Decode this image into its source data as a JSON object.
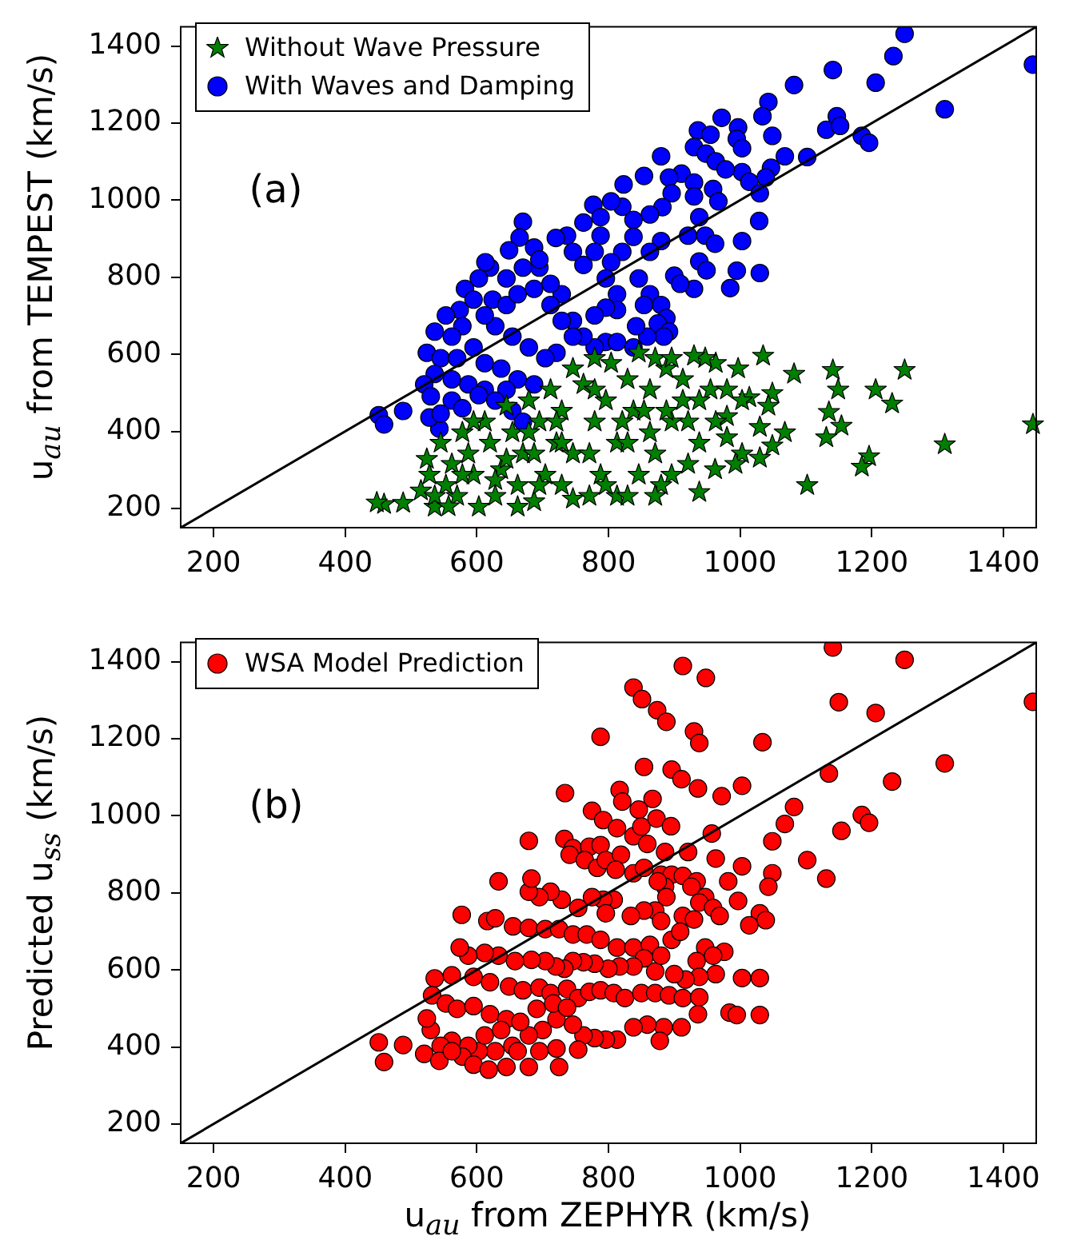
{
  "chart_data": [
    {
      "type": "scatter",
      "ylabel": "u$_{au}$ from TEMPEST (km/s)",
      "annotations": [
        "(a)"
      ],
      "xlim": [
        150,
        1450
      ],
      "ylim": [
        150,
        1450
      ],
      "xticks": [
        200,
        400,
        600,
        800,
        1000,
        1200,
        1400
      ],
      "yticks": [
        200,
        400,
        600,
        800,
        1000,
        1200,
        1400
      ],
      "grid": false,
      "legend": "top left",
      "series": [
        {
          "name": "Without Wave Pressure",
          "color": "#007f00",
          "marker": "star",
          "x": [
            1445,
            1311,
            1250,
            1231,
            1206,
            1196,
            1185,
            1154,
            1135,
            1131,
            1141,
            1149,
            1102,
            1082,
            1068,
            1049,
            1043,
            1049,
            1035,
            1030,
            1030,
            1014,
            1003,
            1003,
            997,
            993,
            980,
            980,
            963,
            962,
            955,
            947,
            938,
            930,
            938,
            921,
            913,
            896,
            888,
            880,
            871,
            863,
            863,
            846,
            846,
            838,
            829,
            813,
            813,
            804,
            796,
            788,
            779,
            779,
            771,
            762,
            746,
            746,
            729,
            729,
            721,
            712,
            704,
            695,
            687,
            679,
            670,
            662,
            654,
            645,
            637,
            628,
            620,
            612,
            603,
            595,
            587,
            578,
            570,
            562,
            553,
            545,
            536,
            528,
            524,
            515,
            536,
            557,
            488,
            459,
            448,
            662,
            746,
            628,
            687,
            729,
            771,
            829,
            871,
            896,
            913,
            938,
            963,
            980,
            829,
            871,
            796,
            695,
            645,
            595,
            578,
            721,
            679,
            779,
            821,
            854,
            888,
            896,
            921
          ],
          "values": [
            418,
            366,
            559,
            472,
            508,
            335,
            308,
            414,
            450,
            384,
            559,
            508,
            260,
            549,
            397,
            499,
            466,
            363,
            596,
            411,
            331,
            488,
            480,
            342,
            563,
            315,
            439,
            384,
            577,
            301,
            508,
            590,
            242,
            596,
            370,
            425,
            480,
            287,
            563,
            260,
            590,
            508,
            397,
            604,
            287,
            453,
            535,
            232,
            370,
            577,
            480,
            287,
            590,
            425,
            232,
            522,
            342,
            563,
            453,
            260,
            370,
            508,
            287,
            425,
            218,
            480,
            342,
            260,
            397,
            466,
            301,
            232,
            370,
            425,
            204,
            287,
            342,
            397,
            232,
            315,
            260,
            370,
            204,
            287,
            328,
            246,
            232,
            205,
            214,
            211,
            215,
            204,
            225,
            273,
            342,
            370,
            342,
            370,
            342,
            425,
            535,
            480,
            425,
            508,
            232,
            232,
            260,
            260,
            328,
            425,
            287,
            425,
            397,
            508,
            425,
            453,
            453,
            590,
            315
          ]
        },
        {
          "name": "With Waves and Damping",
          "color": "#0000ff",
          "marker": "circle",
          "x": [
            1250,
            1233,
            1141,
            1082,
            1206,
            1311,
            1445,
            1043,
            1034,
            1147,
            1131,
            1152,
            1185,
            1196,
            972,
            936,
            955,
            997,
            995,
            1003,
            1049,
            1068,
            1102,
            1047,
            1039,
            1003,
            1014,
            1030,
            1029,
            1003,
            995,
            1030,
            985,
            880,
            930,
            948,
            963,
            978,
            911,
            892,
            854,
            823,
            930,
            959,
            967,
            930,
            896,
            882,
            863,
            838,
            821,
            804,
            777,
            788,
            938,
            921,
            947,
            962,
            938,
            949,
            900,
            930,
            909,
            880,
            863,
            838,
            821,
            804,
            788,
            762,
            737,
            720,
            746,
            762,
            779,
            796,
            813,
            846,
            863,
            880,
            854,
            888,
            875,
            892,
            884,
            859,
            842,
            838,
            813,
            796,
            779,
            796,
            813,
            779,
            762,
            746,
            729,
            712,
            695,
            670,
            665,
            649,
            687,
            695,
            670,
            645,
            620,
            613,
            603,
            582,
            595,
            624,
            645,
            662,
            687,
            712,
            729,
            746,
            721,
            704,
            679,
            654,
            628,
            612,
            574,
            553,
            578,
            562,
            536,
            524,
            545,
            570,
            595,
            612,
            637,
            662,
            687,
            645,
            612,
            587,
            562,
            536,
            520,
            530,
            562,
            578,
            603,
            628,
            654,
            670,
            543,
            528,
            545,
            451,
            459,
            488
          ],
          "values": [
            1432,
            1374,
            1338,
            1299,
            1305,
            1236,
            1352,
            1255,
            1218,
            1218,
            1183,
            1193,
            1167,
            1149,
            1214,
            1181,
            1170,
            1189,
            1159,
            1135,
            1167,
            1114,
            1112,
            1084,
            1059,
            1073,
            1048,
            1018,
            946,
            894,
            817,
            811,
            772,
            1114,
            1138,
            1121,
            1101,
            1080,
            1069,
            1059,
            1063,
            1041,
            1046,
            1029,
            997,
            1010,
            1018,
            982,
            963,
            949,
            983,
            997,
            988,
            956,
            956,
            908,
            908,
            887,
            841,
            818,
            804,
            770,
            783,
            894,
            866,
            905,
            866,
            839,
            908,
            942,
            908,
            902,
            866,
            832,
            866,
            797,
            756,
            797,
            756,
            728,
            728,
            694,
            680,
            659,
            646,
            646,
            673,
            618,
            715,
            721,
            701,
            632,
            632,
            618,
            646,
            687,
            756,
            783,
            825,
            944,
            903,
            870,
            877,
            846,
            825,
            797,
            825,
            839,
            797,
            770,
            742,
            742,
            728,
            756,
            770,
            728,
            687,
            646,
            604,
            590,
            618,
            646,
            673,
            701,
            715,
            701,
            673,
            646,
            659,
            604,
            590,
            590,
            618,
            577,
            563,
            535,
            522,
            508,
            508,
            522,
            535,
            549,
            522,
            491,
            480,
            460,
            494,
            480,
            453,
            425,
            407,
            436,
            446,
            442,
            418,
            453
          ]
        },
        {
          "type": "line",
          "color": "#000000",
          "marker": "none",
          "x": [
            150,
            1450
          ],
          "values": [
            150,
            1450
          ]
        }
      ]
    },
    {
      "type": "scatter",
      "xlabel": "u$_{au}$ from ZEPHYR (km/s)",
      "ylabel": "Predicted u$_{ss}$ (km/s)",
      "annotations": [
        "(b)"
      ],
      "xlim": [
        150,
        1450
      ],
      "ylim": [
        150,
        1450
      ],
      "xticks": [
        200,
        400,
        600,
        800,
        1000,
        1200,
        1400
      ],
      "yticks": [
        200,
        400,
        600,
        800,
        1000,
        1200,
        1400
      ],
      "grid": false,
      "legend": "top left",
      "series": [
        {
          "name": "WSA Model Prediction",
          "color": "#ff0000",
          "marker": "circle",
          "x": [
            1141,
            1250,
            1445,
            1150,
            1206,
            913,
            948,
            838,
            851,
            874,
            888,
            930,
            938,
            788,
            1034,
            1311,
            1135,
            1231,
            854,
            896,
            911,
            936,
            972,
            1003,
            734,
            817,
            821,
            867,
            846,
            775,
            792,
            813,
            838,
            850,
            873,
            895,
            1082,
            1068,
            1185,
            1196,
            1154,
            957,
            1049,
            679,
            733,
            746,
            771,
            788,
            741,
            764,
            783,
            796,
            819,
            859,
            886,
            921,
            963,
            1003,
            1102,
            1131,
            1049,
            1043,
            982,
            811,
            838,
            854,
            880,
            896,
            913,
            934,
            926,
            947,
            938,
            959,
            969,
            997,
            1030,
            1039,
            1014,
            886,
            875,
            888,
            871,
            854,
            834,
            880,
            913,
            930,
            808,
            792,
            796,
            775,
            754,
            729,
            712,
            695,
            679,
            633,
            683,
            577,
            616,
            628,
            655,
            679,
            704,
            725,
            746,
            767,
            788,
            813,
            838,
            863,
            896,
            909,
            947,
            976,
            934,
            959,
            1003,
            1030,
            963,
            938,
            917,
            900,
            871,
            880,
            854,
            838,
            817,
            800,
            779,
            762,
            746,
            733,
            720,
            704,
            683,
            658,
            633,
            612,
            587,
            574,
            562,
            536,
            595,
            620,
            649,
            670,
            695,
            712,
            737,
            754,
            771,
            788,
            808,
            825,
            850,
            871,
            892,
            913,
            938,
            984,
            995,
            1030,
            936,
            911,
            884,
            878,
            859,
            838,
            813,
            796,
            779,
            762,
            754,
            746,
            721,
            700,
            679,
            654,
            628,
            603,
            587,
            562,
            545,
            530,
            524,
            532,
            553,
            570,
            595,
            620,
            645,
            666,
            691,
            716,
            737,
            612,
            637,
            578,
            595,
            618,
            645,
            679,
            725,
            520,
            543,
            562,
            451,
            459,
            488,
            662,
            695,
            721
          ],
          "values": [
            1437,
            1405,
            1296,
            1295,
            1267,
            1389,
            1358,
            1333,
            1303,
            1274,
            1244,
            1219,
            1189,
            1205,
            1191,
            1136,
            1110,
            1089,
            1127,
            1120,
            1095,
            1071,
            1051,
            1078,
            1059,
            1067,
            1037,
            1044,
            1016,
            1013,
            989,
            968,
            947,
            972,
            993,
            973,
            1023,
            979,
            1002,
            982,
            961,
            954,
            934,
            935,
            940,
            916,
            920,
            924,
            899,
            885,
            865,
            885,
            899,
            927,
            906,
            906,
            889,
            869,
            885,
            837,
            851,
            816,
            830,
            860,
            851,
            865,
            847,
            847,
            844,
            830,
            816,
            789,
            775,
            761,
            740,
            779,
            747,
            729,
            716,
            816,
            830,
            789,
            754,
            754,
            740,
            727,
            740,
            731,
            782,
            782,
            747,
            789,
            761,
            782,
            803,
            789,
            803,
            830,
            837,
            743,
            727,
            734,
            713,
            709,
            706,
            706,
            692,
            692,
            678,
            658,
            658,
            665,
            678,
            699,
            658,
            647,
            623,
            637,
            579,
            579,
            589,
            582,
            575,
            589,
            596,
            637,
            630,
            609,
            609,
            603,
            616,
            620,
            623,
            603,
            609,
            623,
            626,
            623,
            637,
            644,
            637,
            658,
            586,
            578,
            582,
            568,
            557,
            547,
            554,
            540,
            551,
            527,
            543,
            547,
            540,
            527,
            540,
            540,
            534,
            527,
            529,
            489,
            483,
            483,
            485,
            451,
            451,
            416,
            458,
            451,
            419,
            419,
            423,
            430,
            393,
            458,
            472,
            444,
            430,
            403,
            389,
            389,
            403,
            416,
            403,
            444,
            474,
            534,
            513,
            499,
            506,
            485,
            472,
            465,
            499,
            513,
            502,
            430,
            444,
            375,
            354,
            341,
            348,
            348,
            348,
            382,
            364,
            389,
            412,
            361,
            405,
            389,
            389,
            396
          ]
        },
        {
          "type": "line",
          "color": "#000000",
          "marker": "none",
          "x": [
            150,
            1450
          ],
          "values": [
            150,
            1450
          ]
        }
      ]
    }
  ]
}
